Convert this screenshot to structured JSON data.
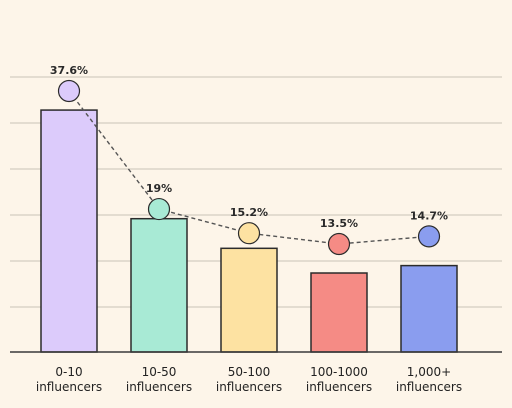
{
  "chart_data": {
    "type": "bar",
    "categories": [
      [
        "0-10",
        "influencers"
      ],
      [
        "10-50",
        "influencers"
      ],
      [
        "50-100",
        "influencers"
      ],
      [
        "100-1000",
        "influencers"
      ],
      [
        "1,000+",
        "influencers"
      ]
    ],
    "values": [
      49,
      27,
      21,
      16,
      17.5
    ],
    "line_values": [
      37.6,
      19,
      15.2,
      13.5,
      14.7
    ],
    "line_labels": [
      "37.6%",
      "19%",
      "15.2%",
      "13.5%",
      "14.7%"
    ],
    "bar_colors": [
      "#dccbfb",
      "#a8ead5",
      "#fde2a2",
      "#f58b85",
      "#8a9def"
    ],
    "marker_colors": [
      "#dccbfb",
      "#a8ead5",
      "#fde2a2",
      "#f58b85",
      "#8a9def"
    ],
    "title": "",
    "xlabel": "",
    "ylabel": "",
    "ylim": [
      0,
      60
    ],
    "grid": true,
    "legend": "none"
  },
  "colors": {
    "background": "#fdf5e9",
    "gridline": "#c9c3b8",
    "axis": "#3a3a3a",
    "bar_stroke": "#2b2b2b",
    "line": "#555555"
  }
}
